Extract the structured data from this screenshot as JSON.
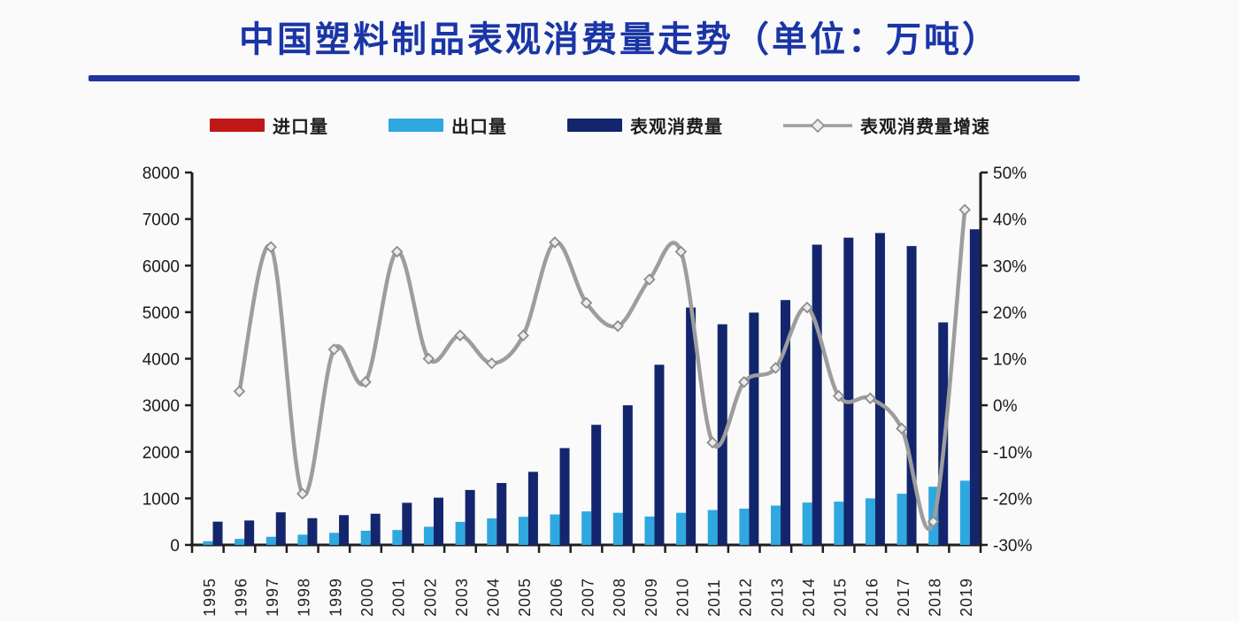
{
  "header": {
    "title": "中国塑料制品表观消费量走势（单位：万吨）",
    "title_color": "#1a35a6",
    "underline_color": "#2133a0"
  },
  "legend": {
    "items": [
      {
        "label": "进口量",
        "type": "bar",
        "color": "#c01818"
      },
      {
        "label": "出口量",
        "type": "bar",
        "color": "#2fa8e0"
      },
      {
        "label": "表观消费量",
        "type": "bar",
        "color": "#13266d"
      },
      {
        "label": "表观消费量增速",
        "type": "line",
        "color": "#9d9d9d"
      }
    ]
  },
  "chart_data": {
    "type": "bar+line combo, dual axis",
    "x": [
      "1995",
      "1996",
      "1997",
      "1998",
      "1999",
      "2000",
      "2001",
      "2002",
      "2003",
      "2004",
      "2005",
      "2006",
      "2007",
      "2008",
      "2009",
      "2010",
      "2011",
      "2012",
      "2013",
      "2014",
      "2015",
      "2016",
      "2017",
      "2018",
      "2019"
    ],
    "series": [
      {
        "name": "进口量",
        "type": "bar",
        "axis": "left",
        "color": "#c01818",
        "values": [
          0,
          0,
          0,
          0,
          0,
          0,
          0,
          0,
          0,
          0,
          0,
          0,
          0,
          0,
          0,
          0,
          0,
          0,
          0,
          0,
          0,
          0,
          0,
          0,
          0
        ]
      },
      {
        "name": "出口量",
        "type": "bar",
        "axis": "left",
        "color": "#2fa8e0",
        "values": [
          80,
          130,
          175,
          220,
          260,
          305,
          320,
          390,
          495,
          570,
          605,
          655,
          720,
          690,
          610,
          690,
          750,
          780,
          845,
          910,
          930,
          1000,
          1100,
          1250,
          1380
        ]
      },
      {
        "name": "表观消费量",
        "type": "bar",
        "axis": "left",
        "color": "#13266d",
        "values": [
          500,
          525,
          700,
          575,
          640,
          670,
          905,
          1015,
          1180,
          1330,
          1570,
          2080,
          2580,
          3000,
          3870,
          5100,
          4740,
          4990,
          5260,
          6450,
          6600,
          6700,
          6420,
          4780,
          6780
        ]
      },
      {
        "name": "表观消费量增速",
        "type": "line",
        "axis": "right",
        "unit": "%",
        "color": "#9d9d9d",
        "marker": "open-diamond",
        "values": [
          null,
          3,
          34,
          -19,
          12,
          5,
          33,
          10,
          15,
          9,
          15,
          35,
          22,
          17,
          27,
          33,
          -8,
          5,
          8,
          21,
          2,
          1.5,
          -5,
          -25,
          42
        ]
      }
    ],
    "left_axis": {
      "min": 0,
      "max": 8000,
      "step": 1000,
      "labels": [
        "8000",
        "7000",
        "6000",
        "5000",
        "4000",
        "3000",
        "2000",
        "1000",
        "0"
      ]
    },
    "right_axis": {
      "min": -30,
      "max": 50,
      "step": 10,
      "labels": [
        "50%",
        "40%",
        "30%",
        "20%",
        "10%",
        "0%",
        "-10%",
        "-20%",
        "-30%"
      ]
    },
    "grid": false,
    "legend_position": "top",
    "x_label_rotation": 90
  }
}
